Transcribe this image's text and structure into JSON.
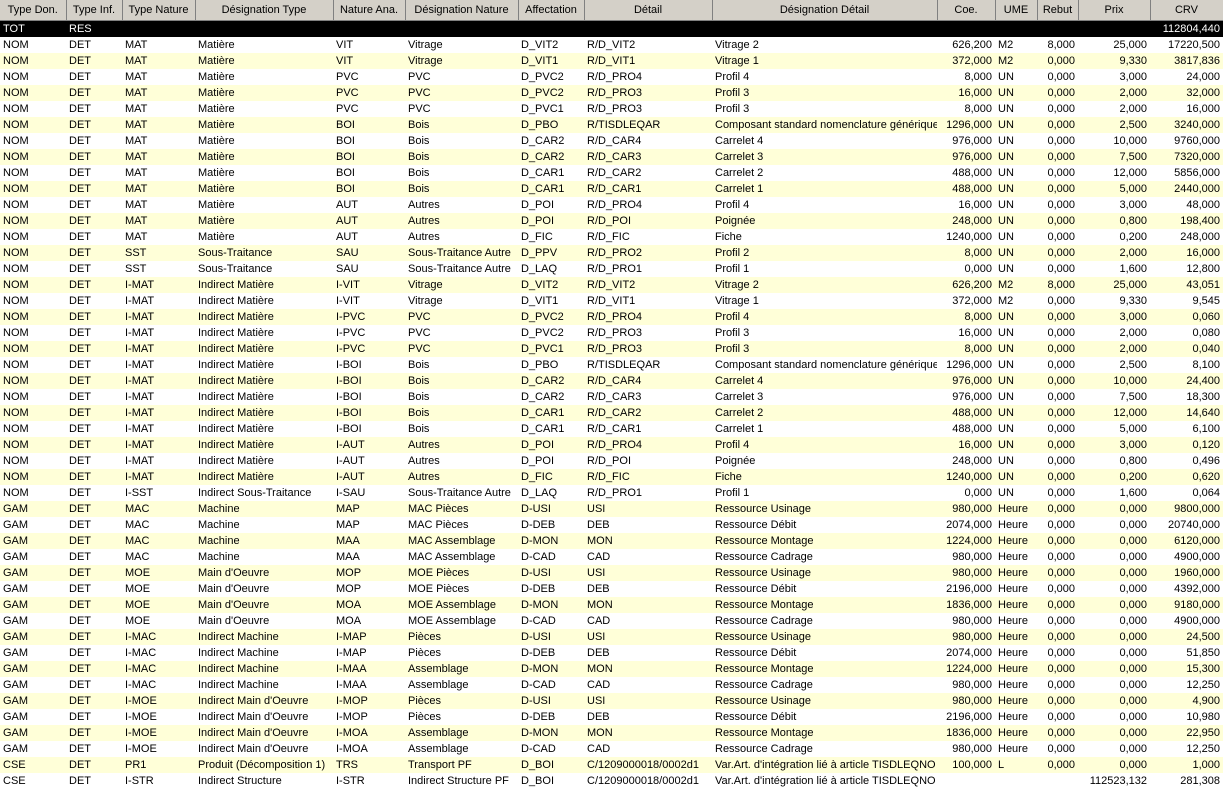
{
  "table": {
    "columns": [
      "Type Don.",
      "Type Inf.",
      "Type Nature",
      "Désignation Type",
      "Nature Ana.",
      "Désignation Nature",
      "Affectation",
      "Détail",
      "Désignation Détail",
      "Coe.",
      "UME",
      "Rebut",
      "Prix",
      "CRV"
    ],
    "rows": [
      [
        "TOT",
        "RES",
        null,
        null,
        null,
        null,
        null,
        null,
        null,
        null,
        null,
        null,
        null,
        "112804,440"
      ],
      [
        "NOM",
        "DET",
        "MAT",
        "Matière",
        "VIT",
        "Vitrage",
        "D_VIT2",
        "R/D_VIT2",
        "Vitrage 2",
        "626,200",
        "M2",
        "8,000",
        "25,000",
        "17220,500"
      ],
      [
        "NOM",
        "DET",
        "MAT",
        "Matière",
        "VIT",
        "Vitrage",
        "D_VIT1",
        "R/D_VIT1",
        "Vitrage 1",
        "372,000",
        "M2",
        "0,000",
        "9,330",
        "3817,836"
      ],
      [
        "NOM",
        "DET",
        "MAT",
        "Matière",
        "PVC",
        "PVC",
        "D_PVC2",
        "R/D_PRO4",
        "Profil 4",
        "8,000",
        "UN",
        "0,000",
        "3,000",
        "24,000"
      ],
      [
        "NOM",
        "DET",
        "MAT",
        "Matière",
        "PVC",
        "PVC",
        "D_PVC2",
        "R/D_PRO3",
        "Profil 3",
        "16,000",
        "UN",
        "0,000",
        "2,000",
        "32,000"
      ],
      [
        "NOM",
        "DET",
        "MAT",
        "Matière",
        "PVC",
        "PVC",
        "D_PVC1",
        "R/D_PRO3",
        "Profil 3",
        "8,000",
        "UN",
        "0,000",
        "2,000",
        "16,000"
      ],
      [
        "NOM",
        "DET",
        "MAT",
        "Matière",
        "BOI",
        "Bois",
        "D_PBO",
        "R/TISDLEQAR",
        "Composant standard nomenclature générique",
        "1296,000",
        "UN",
        "0,000",
        "2,500",
        "3240,000"
      ],
      [
        "NOM",
        "DET",
        "MAT",
        "Matière",
        "BOI",
        "Bois",
        "D_CAR2",
        "R/D_CAR4",
        "Carrelet 4",
        "976,000",
        "UN",
        "0,000",
        "10,000",
        "9760,000"
      ],
      [
        "NOM",
        "DET",
        "MAT",
        "Matière",
        "BOI",
        "Bois",
        "D_CAR2",
        "R/D_CAR3",
        "Carrelet 3",
        "976,000",
        "UN",
        "0,000",
        "7,500",
        "7320,000"
      ],
      [
        "NOM",
        "DET",
        "MAT",
        "Matière",
        "BOI",
        "Bois",
        "D_CAR1",
        "R/D_CAR2",
        "Carrelet 2",
        "488,000",
        "UN",
        "0,000",
        "12,000",
        "5856,000"
      ],
      [
        "NOM",
        "DET",
        "MAT",
        "Matière",
        "BOI",
        "Bois",
        "D_CAR1",
        "R/D_CAR1",
        "Carrelet 1",
        "488,000",
        "UN",
        "0,000",
        "5,000",
        "2440,000"
      ],
      [
        "NOM",
        "DET",
        "MAT",
        "Matière",
        "AUT",
        "Autres",
        "D_POI",
        "R/D_PRO4",
        "Profil 4",
        "16,000",
        "UN",
        "0,000",
        "3,000",
        "48,000"
      ],
      [
        "NOM",
        "DET",
        "MAT",
        "Matière",
        "AUT",
        "Autres",
        "D_POI",
        "R/D_POI",
        "Poignée",
        "248,000",
        "UN",
        "0,000",
        "0,800",
        "198,400"
      ],
      [
        "NOM",
        "DET",
        "MAT",
        "Matière",
        "AUT",
        "Autres",
        "D_FIC",
        "R/D_FIC",
        "Fiche",
        "1240,000",
        "UN",
        "0,000",
        "0,200",
        "248,000"
      ],
      [
        "NOM",
        "DET",
        "SST",
        "Sous-Traitance",
        "SAU",
        "Sous-Traitance Autre",
        "D_PPV",
        "R/D_PRO2",
        "Profil 2",
        "8,000",
        "UN",
        "0,000",
        "2,000",
        "16,000"
      ],
      [
        "NOM",
        "DET",
        "SST",
        "Sous-Traitance",
        "SAU",
        "Sous-Traitance Autre",
        "D_LAQ",
        "R/D_PRO1",
        "Profil 1",
        "0,000",
        "UN",
        "0,000",
        "1,600",
        "12,800"
      ],
      [
        "NOM",
        "DET",
        "I-MAT",
        "Indirect Matière",
        "I-VIT",
        "Vitrage",
        "D_VIT2",
        "R/D_VIT2",
        "Vitrage 2",
        "626,200",
        "M2",
        "8,000",
        "25,000",
        "43,051"
      ],
      [
        "NOM",
        "DET",
        "I-MAT",
        "Indirect Matière",
        "I-VIT",
        "Vitrage",
        "D_VIT1",
        "R/D_VIT1",
        "Vitrage 1",
        "372,000",
        "M2",
        "0,000",
        "9,330",
        "9,545"
      ],
      [
        "NOM",
        "DET",
        "I-MAT",
        "Indirect Matière",
        "I-PVC",
        "PVC",
        "D_PVC2",
        "R/D_PRO4",
        "Profil 4",
        "8,000",
        "UN",
        "0,000",
        "3,000",
        "0,060"
      ],
      [
        "NOM",
        "DET",
        "I-MAT",
        "Indirect Matière",
        "I-PVC",
        "PVC",
        "D_PVC2",
        "R/D_PRO3",
        "Profil 3",
        "16,000",
        "UN",
        "0,000",
        "2,000",
        "0,080"
      ],
      [
        "NOM",
        "DET",
        "I-MAT",
        "Indirect Matière",
        "I-PVC",
        "PVC",
        "D_PVC1",
        "R/D_PRO3",
        "Profil 3",
        "8,000",
        "UN",
        "0,000",
        "2,000",
        "0,040"
      ],
      [
        "NOM",
        "DET",
        "I-MAT",
        "Indirect Matière",
        "I-BOI",
        "Bois",
        "D_PBO",
        "R/TISDLEQAR",
        "Composant standard nomenclature générique",
        "1296,000",
        "UN",
        "0,000",
        "2,500",
        "8,100"
      ],
      [
        "NOM",
        "DET",
        "I-MAT",
        "Indirect Matière",
        "I-BOI",
        "Bois",
        "D_CAR2",
        "R/D_CAR4",
        "Carrelet 4",
        "976,000",
        "UN",
        "0,000",
        "10,000",
        "24,400"
      ],
      [
        "NOM",
        "DET",
        "I-MAT",
        "Indirect Matière",
        "I-BOI",
        "Bois",
        "D_CAR2",
        "R/D_CAR3",
        "Carrelet 3",
        "976,000",
        "UN",
        "0,000",
        "7,500",
        "18,300"
      ],
      [
        "NOM",
        "DET",
        "I-MAT",
        "Indirect Matière",
        "I-BOI",
        "Bois",
        "D_CAR1",
        "R/D_CAR2",
        "Carrelet 2",
        "488,000",
        "UN",
        "0,000",
        "12,000",
        "14,640"
      ],
      [
        "NOM",
        "DET",
        "I-MAT",
        "Indirect Matière",
        "I-BOI",
        "Bois",
        "D_CAR1",
        "R/D_CAR1",
        "Carrelet 1",
        "488,000",
        "UN",
        "0,000",
        "5,000",
        "6,100"
      ],
      [
        "NOM",
        "DET",
        "I-MAT",
        "Indirect Matière",
        "I-AUT",
        "Autres",
        "D_POI",
        "R/D_PRO4",
        "Profil 4",
        "16,000",
        "UN",
        "0,000",
        "3,000",
        "0,120"
      ],
      [
        "NOM",
        "DET",
        "I-MAT",
        "Indirect Matière",
        "I-AUT",
        "Autres",
        "D_POI",
        "R/D_POI",
        "Poignée",
        "248,000",
        "UN",
        "0,000",
        "0,800",
        "0,496"
      ],
      [
        "NOM",
        "DET",
        "I-MAT",
        "Indirect Matière",
        "I-AUT",
        "Autres",
        "D_FIC",
        "R/D_FIC",
        "Fiche",
        "1240,000",
        "UN",
        "0,000",
        "0,200",
        "0,620"
      ],
      [
        "NOM",
        "DET",
        "I-SST",
        "Indirect Sous-Traitance",
        "I-SAU",
        "Sous-Traitance Autre",
        "D_LAQ",
        "R/D_PRO1",
        "Profil 1",
        "0,000",
        "UN",
        "0,000",
        "1,600",
        "0,064"
      ],
      [
        "GAM",
        "DET",
        "MAC",
        "Machine",
        "MAP",
        "MAC Pièces",
        "D-USI",
        "USI",
        "Ressource Usinage",
        "980,000",
        "Heure",
        "0,000",
        "0,000",
        "9800,000"
      ],
      [
        "GAM",
        "DET",
        "MAC",
        "Machine",
        "MAP",
        "MAC Pièces",
        "D-DEB",
        "DEB",
        "Ressource Débit",
        "2074,000",
        "Heure",
        "0,000",
        "0,000",
        "20740,000"
      ],
      [
        "GAM",
        "DET",
        "MAC",
        "Machine",
        "MAA",
        "MAC Assemblage",
        "D-MON",
        "MON",
        "Ressource Montage",
        "1224,000",
        "Heure",
        "0,000",
        "0,000",
        "6120,000"
      ],
      [
        "GAM",
        "DET",
        "MAC",
        "Machine",
        "MAA",
        "MAC Assemblage",
        "D-CAD",
        "CAD",
        "Ressource Cadrage",
        "980,000",
        "Heure",
        "0,000",
        "0,000",
        "4900,000"
      ],
      [
        "GAM",
        "DET",
        "MOE",
        "Main d'Oeuvre",
        "MOP",
        "MOE Pièces",
        "D-USI",
        "USI",
        "Ressource Usinage",
        "980,000",
        "Heure",
        "0,000",
        "0,000",
        "1960,000"
      ],
      [
        "GAM",
        "DET",
        "MOE",
        "Main d'Oeuvre",
        "MOP",
        "MOE Pièces",
        "D-DEB",
        "DEB",
        "Ressource Débit",
        "2196,000",
        "Heure",
        "0,000",
        "0,000",
        "4392,000"
      ],
      [
        "GAM",
        "DET",
        "MOE",
        "Main d'Oeuvre",
        "MOA",
        "MOE Assemblage",
        "D-MON",
        "MON",
        "Ressource Montage",
        "1836,000",
        "Heure",
        "0,000",
        "0,000",
        "9180,000"
      ],
      [
        "GAM",
        "DET",
        "MOE",
        "Main d'Oeuvre",
        "MOA",
        "MOE Assemblage",
        "D-CAD",
        "CAD",
        "Ressource Cadrage",
        "980,000",
        "Heure",
        "0,000",
        "0,000",
        "4900,000"
      ],
      [
        "GAM",
        "DET",
        "I-MAC",
        "Indirect Machine",
        "I-MAP",
        "Pièces",
        "D-USI",
        "USI",
        "Ressource Usinage",
        "980,000",
        "Heure",
        "0,000",
        "0,000",
        "24,500"
      ],
      [
        "GAM",
        "DET",
        "I-MAC",
        "Indirect Machine",
        "I-MAP",
        "Pièces",
        "D-DEB",
        "DEB",
        "Ressource Débit",
        "2074,000",
        "Heure",
        "0,000",
        "0,000",
        "51,850"
      ],
      [
        "GAM",
        "DET",
        "I-MAC",
        "Indirect Machine",
        "I-MAA",
        "Assemblage",
        "D-MON",
        "MON",
        "Ressource Montage",
        "1224,000",
        "Heure",
        "0,000",
        "0,000",
        "15,300"
      ],
      [
        "GAM",
        "DET",
        "I-MAC",
        "Indirect Machine",
        "I-MAA",
        "Assemblage",
        "D-CAD",
        "CAD",
        "Ressource Cadrage",
        "980,000",
        "Heure",
        "0,000",
        "0,000",
        "12,250"
      ],
      [
        "GAM",
        "DET",
        "I-MOE",
        "Indirect Main d'Oeuvre",
        "I-MOP",
        "Pièces",
        "D-USI",
        "USI",
        "Ressource Usinage",
        "980,000",
        "Heure",
        "0,000",
        "0,000",
        "4,900"
      ],
      [
        "GAM",
        "DET",
        "I-MOE",
        "Indirect Main d'Oeuvre",
        "I-MOP",
        "Pièces",
        "D-DEB",
        "DEB",
        "Ressource Débit",
        "2196,000",
        "Heure",
        "0,000",
        "0,000",
        "10,980"
      ],
      [
        "GAM",
        "DET",
        "I-MOE",
        "Indirect Main d'Oeuvre",
        "I-MOA",
        "Assemblage",
        "D-MON",
        "MON",
        "Ressource Montage",
        "1836,000",
        "Heure",
        "0,000",
        "0,000",
        "22,950"
      ],
      [
        "GAM",
        "DET",
        "I-MOE",
        "Indirect Main d'Oeuvre",
        "I-MOA",
        "Assemblage",
        "D-CAD",
        "CAD",
        "Ressource Cadrage",
        "980,000",
        "Heure",
        "0,000",
        "0,000",
        "12,250"
      ],
      [
        "CSE",
        "DET",
        "PR1",
        "Produit (Décomposition 1)",
        "TRS",
        "Transport PF",
        "D_BOI",
        "C/1209000018/0002d1",
        "Var.Art. d'intégration lié à article TISDLEQNO",
        "100,000",
        "L",
        "0,000",
        "0,000",
        "1,000"
      ],
      [
        "CSE",
        "DET",
        "I-STR",
        "Indirect Structure",
        "I-STR",
        "Indirect Structure PF",
        "D_BOI",
        "C/1209000018/0002d1",
        "Var.Art. d'intégration lié à article TISDLEQNO",
        null,
        null,
        null,
        "112523,132",
        "281,308"
      ]
    ]
  }
}
